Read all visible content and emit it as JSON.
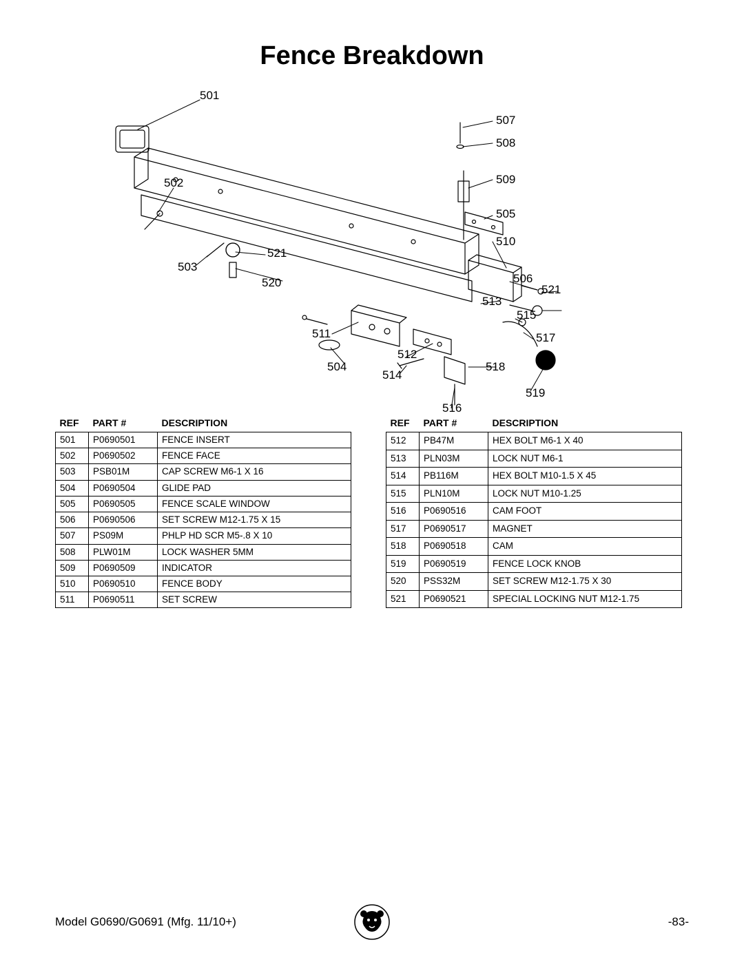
{
  "title": "Fence Breakdown",
  "footer": {
    "model": "Model G0690/G0691 (Mfg. 11/10+)",
    "page": "-83-"
  },
  "tables": {
    "columns": [
      "REF",
      "PART #",
      "DESCRIPTION"
    ],
    "left": [
      {
        "ref": "501",
        "part": "P0690501",
        "desc": "FENCE INSERT"
      },
      {
        "ref": "502",
        "part": "P0690502",
        "desc": "FENCE FACE"
      },
      {
        "ref": "503",
        "part": "PSB01M",
        "desc": "CAP SCREW M6-1 X 16"
      },
      {
        "ref": "504",
        "part": "P0690504",
        "desc": "GLIDE PAD"
      },
      {
        "ref": "505",
        "part": "P0690505",
        "desc": "FENCE SCALE WINDOW"
      },
      {
        "ref": "506",
        "part": "P0690506",
        "desc": "SET SCREW M12-1.75 X 15"
      },
      {
        "ref": "507",
        "part": "PS09M",
        "desc": "PHLP HD SCR M5-.8 X 10"
      },
      {
        "ref": "508",
        "part": "PLW01M",
        "desc": "LOCK WASHER 5MM"
      },
      {
        "ref": "509",
        "part": "P0690509",
        "desc": "INDICATOR"
      },
      {
        "ref": "510",
        "part": "P0690510",
        "desc": "FENCE BODY"
      },
      {
        "ref": "511",
        "part": "P0690511",
        "desc": "SET SCREW"
      }
    ],
    "right": [
      {
        "ref": "512",
        "part": "PB47M",
        "desc": "HEX BOLT M6-1 X 40"
      },
      {
        "ref": "513",
        "part": "PLN03M",
        "desc": "LOCK NUT M6-1"
      },
      {
        "ref": "514",
        "part": "PB116M",
        "desc": "HEX BOLT M10-1.5 X 45"
      },
      {
        "ref": "515",
        "part": "PLN10M",
        "desc": "LOCK NUT M10-1.25"
      },
      {
        "ref": "516",
        "part": "P0690516",
        "desc": "CAM FOOT"
      },
      {
        "ref": "517",
        "part": "P0690517",
        "desc": "MAGNET"
      },
      {
        "ref": "518",
        "part": "P0690518",
        "desc": "CAM"
      },
      {
        "ref": "519",
        "part": "P0690519",
        "desc": "FENCE LOCK KNOB"
      },
      {
        "ref": "520",
        "part": "PSS32M",
        "desc": "SET SCREW M12-1.75 X 30"
      },
      {
        "ref": "521",
        "part": "P0690521",
        "desc": "SPECIAL LOCKING NUT M12-1.75"
      }
    ]
  },
  "callouts": {
    "c501": "501",
    "c502": "502",
    "c503": "503",
    "c504": "504",
    "c505": "505",
    "c506": "506",
    "c507": "507",
    "c508": "508",
    "c509": "509",
    "c510": "510",
    "c511": "511",
    "c512": "512",
    "c513": "513",
    "c514": "514",
    "c515": "515",
    "c516": "516",
    "c517": "517",
    "c518": "518",
    "c519": "519",
    "c520": "520",
    "c521l": "521",
    "c521r": "521"
  },
  "diagram_svg": {
    "background": "#ffffff",
    "stroke": "#000000",
    "stroke_width": 1.2
  }
}
